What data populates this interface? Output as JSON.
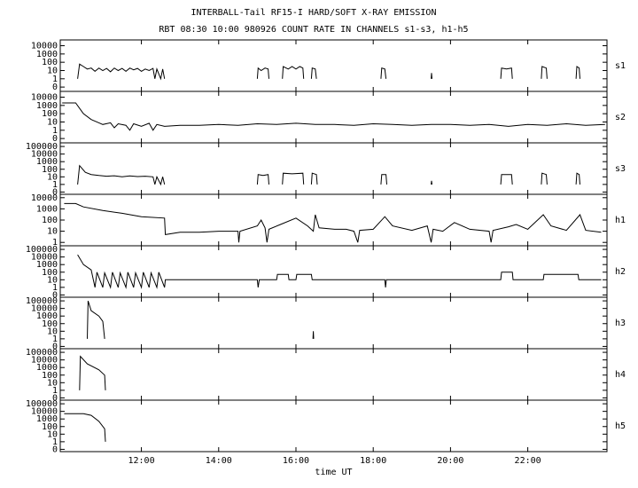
{
  "chart_data": [
    {
      "type": "line",
      "title": "INTERBALL-Tail RF15-I HARD/SOFT X-RAY EMISSION",
      "subtitle": "RBT 08:30 10:00 980926  COUNT RATE IN CHANNELS s1-s3, h1-h5",
      "yscale": "log",
      "xlim": [
        9.9,
        24.05
      ],
      "xticks": [
        12,
        14,
        16,
        18,
        20,
        22
      ],
      "ylim": [
        0.03,
        50000
      ],
      "yticks": [
        {
          "value": 0.1,
          "label": "0"
        },
        1,
        10,
        100,
        1000,
        10000
      ],
      "x": [
        10.35,
        10.4,
        10.5,
        10.6,
        10.7,
        10.8,
        10.9,
        11.0,
        11.1,
        11.2,
        11.3,
        11.4,
        11.5,
        11.6,
        11.7,
        11.8,
        11.9,
        12.0,
        12.1,
        12.2,
        12.3,
        12.35,
        12.4,
        12.5,
        12.55,
        12.6,
        12.7,
        15.0,
        15.02,
        15.1,
        15.2,
        15.28,
        15.3,
        15.4,
        15.65,
        15.67,
        15.8,
        15.9,
        16.0,
        16.1,
        16.18,
        16.2,
        16.3,
        16.4,
        16.42,
        16.5,
        16.53,
        16.6,
        18.2,
        18.22,
        18.3,
        18.33,
        18.4,
        19.5,
        19.51,
        19.52,
        19.6,
        21.3,
        21.32,
        21.45,
        21.58,
        21.6,
        21.7,
        22.35,
        22.37,
        22.48,
        22.5,
        22.6,
        23.25,
        23.27,
        23.33,
        23.35
      ],
      "series": [
        {
          "name": "s1",
          "color": "#000000",
          "values": [
            1,
            60,
            30,
            15,
            20,
            8,
            20,
            10,
            18,
            7,
            20,
            10,
            18,
            8,
            20,
            12,
            18,
            8,
            15,
            10,
            18,
            1,
            15,
            1,
            15,
            1,
            null,
            1,
            20,
            10,
            20,
            15,
            1,
            null,
            1,
            30,
            15,
            30,
            15,
            30,
            20,
            1,
            null,
            1,
            20,
            15,
            1,
            null,
            1,
            20,
            15,
            1,
            null,
            1,
            5,
            1,
            null,
            1,
            20,
            15,
            20,
            1,
            null,
            1,
            30,
            20,
            1,
            null,
            1,
            30,
            20,
            1
          ]
        }
      ]
    },
    {
      "type": "line",
      "yscale": "log",
      "xlim": [
        9.9,
        24.05
      ],
      "xticks": [
        12,
        14,
        16,
        18,
        20,
        22
      ],
      "ylim": [
        0.03,
        50000
      ],
      "yticks": [
        {
          "value": 0.1,
          "label": "0"
        },
        1,
        10,
        100,
        1000,
        10000
      ],
      "x": [
        9.95,
        10.3,
        10.5,
        10.7,
        10.9,
        11.0,
        11.2,
        11.3,
        11.4,
        11.6,
        11.7,
        11.8,
        12.0,
        12.2,
        12.3,
        12.4,
        12.6,
        13.0,
        13.5,
        14.0,
        14.5,
        15.0,
        15.5,
        16.0,
        16.5,
        17.0,
        17.5,
        18.0,
        18.5,
        19.0,
        19.5,
        20.0,
        20.5,
        21.0,
        21.5,
        22.0,
        22.5,
        23.0,
        23.5,
        24.0
      ],
      "series": [
        {
          "name": "s2",
          "color": "#000000",
          "values": [
            2000,
            2000,
            100,
            20,
            8,
            5,
            8,
            2,
            6,
            4,
            1,
            6,
            3,
            7,
            1,
            5,
            3,
            4,
            4,
            5,
            4,
            6,
            5,
            7,
            5,
            5,
            4,
            6,
            5,
            4,
            5,
            5,
            4,
            5,
            3,
            5,
            4,
            6,
            4,
            5
          ]
        }
      ]
    },
    {
      "type": "line",
      "yscale": "log",
      "xlim": [
        9.9,
        24.05
      ],
      "xticks": [
        12,
        14,
        16,
        18,
        20,
        22
      ],
      "ylim": [
        0.05,
        300000
      ],
      "yticks": [
        {
          "value": 0.1,
          "label": "0"
        },
        1,
        10,
        100,
        1000,
        10000,
        100000
      ],
      "x": [
        10.35,
        10.4,
        10.55,
        10.7,
        10.9,
        11.1,
        11.3,
        11.5,
        11.7,
        11.9,
        12.1,
        12.3,
        12.35,
        12.4,
        12.5,
        12.55,
        12.6,
        12.7,
        15.0,
        15.02,
        15.15,
        15.28,
        15.3,
        15.4,
        15.65,
        15.67,
        15.9,
        16.18,
        16.2,
        16.3,
        16.4,
        16.42,
        16.53,
        16.55,
        16.6,
        18.2,
        18.22,
        18.33,
        18.35,
        18.4,
        19.5,
        19.51,
        19.52,
        19.6,
        21.3,
        21.32,
        21.58,
        21.6,
        21.7,
        22.35,
        22.37,
        22.48,
        22.5,
        22.6,
        23.25,
        23.27,
        23.33,
        23.35
      ],
      "series": [
        {
          "name": "s3",
          "color": "#000000",
          "values": [
            1,
            300,
            40,
            20,
            15,
            12,
            14,
            10,
            13,
            11,
            12,
            10,
            1,
            10,
            1,
            10,
            1,
            null,
            1,
            20,
            15,
            20,
            1,
            null,
            1,
            30,
            25,
            30,
            1,
            null,
            1,
            30,
            20,
            1,
            null,
            1,
            20,
            20,
            1,
            null,
            1,
            3,
            1,
            null,
            1,
            20,
            20,
            1,
            null,
            1,
            30,
            20,
            1,
            null,
            1,
            30,
            20,
            1
          ]
        }
      ]
    },
    {
      "type": "line",
      "yscale": "log",
      "xlim": [
        9.9,
        24.05
      ],
      "xticks": [
        12,
        14,
        16,
        18,
        20,
        22
      ],
      "ylim": [
        0.5,
        20000
      ],
      "yticks": [
        1,
        10,
        100,
        1000,
        10000
      ],
      "x": [
        10.0,
        10.3,
        10.5,
        11.0,
        11.5,
        12.0,
        12.6,
        12.62,
        13.0,
        13.5,
        14.0,
        14.5,
        14.52,
        14.55,
        15.0,
        15.1,
        15.2,
        15.25,
        15.3,
        15.6,
        16.0,
        16.3,
        16.45,
        16.5,
        16.6,
        17.0,
        17.3,
        17.5,
        17.6,
        17.65,
        18.0,
        18.3,
        18.5,
        19.0,
        19.4,
        19.5,
        19.55,
        19.8,
        20.1,
        20.5,
        21.0,
        21.05,
        21.1,
        21.5,
        21.7,
        22.0,
        22.4,
        22.6,
        23.0,
        23.35,
        23.5,
        23.9
      ],
      "series": [
        {
          "name": "h1",
          "color": "#000000",
          "values": [
            3000,
            3000,
            1500,
            700,
            400,
            200,
            150,
            5,
            8,
            8,
            10,
            10,
            1,
            10,
            30,
            100,
            20,
            1,
            15,
            40,
            150,
            30,
            10,
            300,
            20,
            15,
            15,
            10,
            1,
            12,
            15,
            200,
            30,
            12,
            30,
            1,
            15,
            10,
            60,
            15,
            10,
            1,
            12,
            25,
            40,
            15,
            300,
            30,
            12,
            300,
            12,
            8
          ]
        }
      ]
    },
    {
      "type": "line",
      "yscale": "log",
      "xlim": [
        9.9,
        24.05
      ],
      "xticks": [
        12,
        14,
        16,
        18,
        20,
        22
      ],
      "ylim": [
        0.05,
        300000
      ],
      "yticks": [
        {
          "value": 0.1,
          "label": "0"
        },
        1,
        10,
        100,
        1000,
        10000,
        100000
      ],
      "x": [
        10.35,
        10.5,
        10.7,
        10.8,
        10.85,
        11.0,
        11.05,
        11.2,
        11.25,
        11.4,
        11.45,
        11.6,
        11.65,
        11.8,
        11.85,
        12.0,
        12.05,
        12.2,
        12.25,
        12.4,
        12.45,
        12.6,
        12.62,
        15.0,
        15.02,
        15.05,
        15.5,
        15.52,
        15.8,
        15.82,
        16.0,
        16.02,
        16.4,
        16.42,
        18.3,
        18.32,
        18.34,
        21.3,
        21.32,
        21.6,
        21.62,
        22.4,
        22.42,
        23.3,
        23.32,
        23.9
      ],
      "series": [
        {
          "name": "h2",
          "color": "#000000",
          "values": [
            20000,
            1000,
            200,
            1,
            100,
            1,
            80,
            1,
            100,
            1,
            80,
            1,
            100,
            1,
            80,
            1,
            100,
            1,
            80,
            1,
            100,
            1,
            10,
            10,
            1,
            10,
            10,
            50,
            50,
            10,
            10,
            50,
            50,
            10,
            10,
            1,
            10,
            10,
            100,
            100,
            10,
            10,
            50,
            50,
            10,
            10
          ]
        }
      ]
    },
    {
      "type": "line",
      "yscale": "log",
      "xlim": [
        9.9,
        24.05
      ],
      "xticks": [
        12,
        14,
        16,
        18,
        20,
        22
      ],
      "ylim": [
        0.05,
        300000
      ],
      "yticks": [
        {
          "value": 0.1,
          "label": "0"
        },
        1,
        10,
        100,
        1000,
        10000,
        100000
      ],
      "x": [
        10.6,
        10.62,
        10.7,
        10.9,
        11.0,
        11.05,
        11.1,
        16.44,
        16.45,
        16.46
      ],
      "series": [
        {
          "name": "h3",
          "color": "#000000",
          "values": [
            1,
            100000,
            5000,
            1000,
            200,
            1,
            null,
            1,
            10,
            1
          ]
        }
      ]
    },
    {
      "type": "line",
      "yscale": "log",
      "xlim": [
        9.9,
        24.05
      ],
      "xticks": [
        12,
        14,
        16,
        18,
        20,
        22
      ],
      "ylim": [
        0.05,
        300000
      ],
      "yticks": [
        {
          "value": 0.1,
          "label": "0"
        },
        1,
        10,
        100,
        1000,
        10000,
        100000
      ],
      "x": [
        10.4,
        10.42,
        10.6,
        10.9,
        11.05,
        11.07
      ],
      "series": [
        {
          "name": "h4",
          "color": "#000000",
          "values": [
            1,
            30000,
            3000,
            500,
            100,
            1
          ]
        }
      ]
    },
    {
      "type": "line",
      "yscale": "log",
      "xlim": [
        9.9,
        24.05
      ],
      "xlabel": "time UT",
      "xticks": [
        {
          "value": 12,
          "label": "12:00"
        },
        {
          "value": 14,
          "label": "14:00"
        },
        {
          "value": 16,
          "label": "16:00"
        },
        {
          "value": 18,
          "label": "18:00"
        },
        {
          "value": 20,
          "label": "20:00"
        },
        {
          "value": 22,
          "label": "22:00"
        }
      ],
      "ylim": [
        0.05,
        300000
      ],
      "yticks": [
        {
          "value": 0.1,
          "label": "0"
        },
        1,
        10,
        100,
        1000,
        10000,
        100000
      ],
      "x": [
        10.0,
        10.5,
        10.7,
        10.9,
        11.05,
        11.07
      ],
      "series": [
        {
          "name": "h5",
          "color": "#000000",
          "values": [
            5000,
            5000,
            3000,
            500,
            50,
            1
          ]
        }
      ]
    }
  ]
}
